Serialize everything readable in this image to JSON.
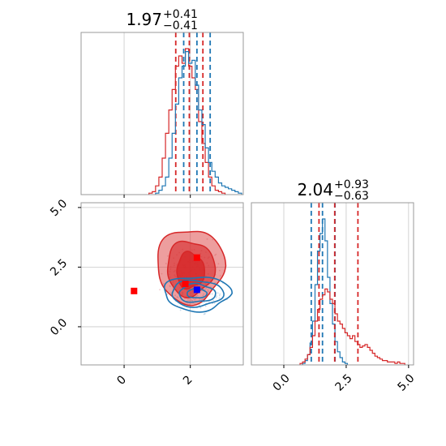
{
  "colors": {
    "red": "#d62728",
    "blue": "#1f77b4",
    "marker_red": "#ff0000",
    "marker_blue": "#0000ff",
    "grid": "#c8c8c8",
    "axes": "#999999"
  },
  "titles": {
    "top": {
      "median": "1.97",
      "plus": "+0.41",
      "minus": "−0.41"
    },
    "bottom_right": {
      "median": "2.04",
      "plus": "+0.93",
      "minus": "−0.63"
    }
  },
  "chart_data": [
    {
      "type": "histogram",
      "panel": "top-left",
      "xlim": [
        -1.3,
        3.6
      ],
      "grid": true,
      "series": [
        {
          "color": "red",
          "x": [
            0.8,
            0.9,
            1.0,
            1.1,
            1.2,
            1.3,
            1.4,
            1.5,
            1.6,
            1.7,
            1.8,
            1.9,
            2.0,
            2.1,
            2.2,
            2.3,
            2.4,
            2.5,
            2.6,
            2.7,
            2.8,
            2.9,
            3.0
          ],
          "values": [
            0.01,
            0.02,
            0.06,
            0.12,
            0.25,
            0.42,
            0.58,
            0.72,
            0.88,
            0.95,
            0.9,
            1.0,
            0.88,
            0.8,
            0.72,
            0.5,
            0.35,
            0.22,
            0.12,
            0.06,
            0.03,
            0.02,
            0.01
          ],
          "quantile_lines": [
            1.56,
            1.97,
            2.38
          ]
        },
        {
          "color": "blue",
          "x": [
            1.0,
            1.1,
            1.2,
            1.3,
            1.4,
            1.5,
            1.6,
            1.7,
            1.8,
            1.9,
            2.0,
            2.1,
            2.2,
            2.3,
            2.4,
            2.5,
            2.6,
            2.7,
            2.8,
            2.9,
            3.0,
            3.1,
            3.2,
            3.3,
            3.4,
            3.5
          ],
          "values": [
            0.01,
            0.03,
            0.06,
            0.12,
            0.25,
            0.42,
            0.62,
            0.8,
            0.88,
            0.98,
            0.9,
            0.92,
            0.75,
            0.58,
            0.48,
            0.32,
            0.22,
            0.16,
            0.12,
            0.08,
            0.06,
            0.05,
            0.04,
            0.03,
            0.02,
            0.01
          ],
          "quantile_lines": [
            1.8,
            2.2,
            2.6
          ]
        }
      ]
    },
    {
      "type": "contour",
      "panel": "bottom-left",
      "xlim": [
        -1.3,
        3.6
      ],
      "ylim": [
        -1.6,
        5.2
      ],
      "xticks": [
        0,
        2
      ],
      "yticks": [
        0.0,
        2.5,
        5.0
      ],
      "xtick_labels": [
        "0",
        "2"
      ],
      "ytick_labels": [
        "0.0",
        "2.5",
        "5.0"
      ],
      "grid": true,
      "series": [
        {
          "color": "red",
          "kind": "filled contours",
          "center": [
            2.0,
            2.4
          ],
          "levels": 3
        },
        {
          "color": "blue",
          "kind": "contour lines",
          "center": [
            2.2,
            1.4
          ],
          "levels": 4
        }
      ],
      "markers": [
        {
          "color": "marker_red",
          "x": 0.3,
          "y": 1.5
        },
        {
          "color": "marker_red",
          "x": 2.2,
          "y": 2.9
        },
        {
          "color": "marker_red",
          "x": 1.85,
          "y": 1.8
        },
        {
          "color": "marker_blue",
          "x": 2.2,
          "y": 1.55
        }
      ]
    },
    {
      "type": "histogram",
      "panel": "bottom-right",
      "xlim": [
        -1.3,
        5.2
      ],
      "xticks": [
        0.0,
        2.5,
        5.0
      ],
      "xtick_labels": [
        "0.0",
        "2.5",
        "5.0"
      ],
      "grid": true,
      "series": [
        {
          "color": "blue",
          "x": [
            0.8,
            0.9,
            1.0,
            1.1,
            1.2,
            1.3,
            1.4,
            1.5,
            1.6,
            1.7,
            1.8,
            1.9,
            2.0,
            2.1,
            2.2,
            2.3,
            2.4,
            2.5
          ],
          "values": [
            0.01,
            0.03,
            0.07,
            0.15,
            0.3,
            0.55,
            0.78,
            0.9,
            1.0,
            0.85,
            0.6,
            0.42,
            0.28,
            0.16,
            0.09,
            0.05,
            0.02,
            0.01
          ],
          "quantile_lines": [
            1.1,
            1.55,
            2.05
          ]
        },
        {
          "color": "red",
          "x": [
            0.7,
            0.8,
            0.9,
            1.0,
            1.1,
            1.2,
            1.3,
            1.4,
            1.5,
            1.6,
            1.7,
            1.8,
            1.9,
            2.0,
            2.1,
            2.2,
            2.3,
            2.4,
            2.5,
            2.6,
            2.7,
            2.8,
            2.9,
            3.0,
            3.1,
            3.2,
            3.3,
            3.4,
            3.5,
            3.6,
            3.7,
            3.8,
            3.9,
            4.0,
            4.1,
            4.2,
            4.3,
            4.4,
            4.5,
            4.6,
            4.7,
            4.8
          ],
          "values": [
            0.01,
            0.02,
            0.04,
            0.07,
            0.12,
            0.2,
            0.3,
            0.38,
            0.45,
            0.48,
            0.52,
            0.5,
            0.45,
            0.42,
            0.35,
            0.3,
            0.28,
            0.25,
            0.22,
            0.2,
            0.18,
            0.2,
            0.16,
            0.14,
            0.12,
            0.13,
            0.14,
            0.12,
            0.1,
            0.08,
            0.06,
            0.05,
            0.04,
            0.03,
            0.03,
            0.02,
            0.02,
            0.02,
            0.01,
            0.02,
            0.01,
            0.01
          ],
          "quantile_lines": [
            1.41,
            2.04,
            2.97
          ]
        }
      ]
    }
  ]
}
